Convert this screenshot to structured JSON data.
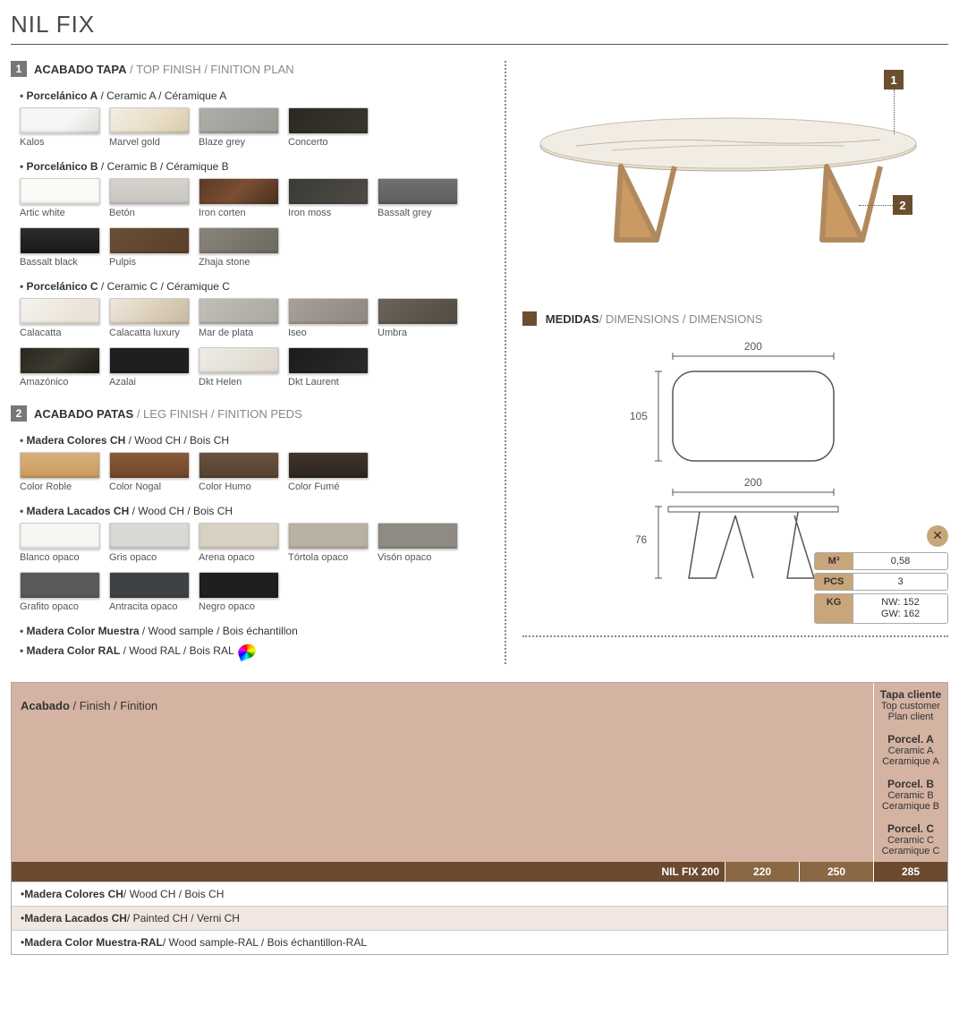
{
  "title": "NIL FIX",
  "section1": {
    "num": "1",
    "title_bold": "ACABADO TAPA",
    "title_rest": " / TOP FINISH / FINITION PLAN",
    "groups": [
      {
        "title_bold": "Porcelánico A",
        "title_rest": " / Ceramic A / Céramique A",
        "swatches": [
          {
            "label": "Kalos",
            "bg": "linear-gradient(135deg,#f5f5f5 60%,#e0dcd8)"
          },
          {
            "label": "Marvel gold",
            "bg": "linear-gradient(135deg,#f3eee6,#e8dcc5 60%,#d8c9a8)"
          },
          {
            "label": "Blaze grey",
            "bg": "linear-gradient(135deg,#b0aea8,#9a9892)"
          },
          {
            "label": "Concerto",
            "bg": "linear-gradient(135deg,#2b2823,#3a362e)"
          }
        ]
      },
      {
        "title_bold": "Porcelánico B",
        "title_rest": " / Ceramic B / Céramique B",
        "swatches": [
          {
            "label": "Artic white",
            "bg": "#fbfaf7"
          },
          {
            "label": "Betón",
            "bg": "linear-gradient(#d6d3cd,#cac7c1)"
          },
          {
            "label": "Iron corten",
            "bg": "linear-gradient(135deg,#5a3b28,#7a4e32 50%,#4a2f20)"
          },
          {
            "label": "Iron moss",
            "bg": "linear-gradient(135deg,#3b3a35,#4e4c44)"
          },
          {
            "label": "Bassalt grey",
            "bg": "linear-gradient(#6f6f6f,#5e5e5e)"
          },
          {
            "label": "Bassalt black",
            "bg": "linear-gradient(#2c2c2c,#1a1a1a)"
          },
          {
            "label": "Pulpis",
            "bg": "linear-gradient(135deg,#6a4e36,#5a4029)"
          },
          {
            "label": "Zhaja stone",
            "bg": "linear-gradient(135deg,#8a857a,#6e695f)"
          }
        ]
      },
      {
        "title_bold": "Porcelánico C",
        "title_rest": " / Ceramic C / Céramique C",
        "swatches": [
          {
            "label": "Calacatta",
            "bg": "linear-gradient(135deg,#f6f4f0,#eae3d7 70%)"
          },
          {
            "label": "Calacatta luxury",
            "bg": "linear-gradient(135deg,#efe8dc,#d9ccb6 60%,#c7b89f)"
          },
          {
            "label": "Mar de plata",
            "bg": "linear-gradient(135deg,#c2bfb8,#aaa7a0)"
          },
          {
            "label": "Iseo",
            "bg": "linear-gradient(135deg,#a9a199,#8f877f)"
          },
          {
            "label": "Umbra",
            "bg": "linear-gradient(135deg,#6b645a,#514b42)"
          },
          {
            "label": "Amazónico",
            "bg": "linear-gradient(135deg,#2a2720,#3e3a30 50%,#1e1b15)"
          },
          {
            "label": "Azalai",
            "bg": "#1f1f1f"
          },
          {
            "label": "Dkt Helen",
            "bg": "linear-gradient(135deg,#efece6,#ddd7cb)"
          },
          {
            "label": "Dkt Laurent",
            "bg": "linear-gradient(135deg,#1c1c1c,#2a2a2a)"
          }
        ]
      }
    ]
  },
  "section2": {
    "num": "2",
    "title_bold": "ACABADO PATAS",
    "title_rest": " / LEG FINISH / FINITION PEDS",
    "groups": [
      {
        "title_bold": "Madera Colores CH",
        "title_rest": " / Wood CH / Bois CH",
        "swatches": [
          {
            "label": "Color Roble",
            "bg": "linear-gradient(#d9b07a,#c99a5e)"
          },
          {
            "label": "Color Nogal",
            "bg": "linear-gradient(#8a5a3a,#6f452b)"
          },
          {
            "label": "Color Humo",
            "bg": "linear-gradient(#6a5340,#54412f)"
          },
          {
            "label": "Color Fumé",
            "bg": "linear-gradient(#3d342c,#2c251f)"
          }
        ]
      },
      {
        "title_bold": "Madera Lacados CH",
        "title_rest": " / Wood CH / Bois CH",
        "swatches": [
          {
            "label": "Blanco opaco",
            "bg": "#f7f6f3"
          },
          {
            "label": "Gris opaco",
            "bg": "#d9d8d5"
          },
          {
            "label": "Arena opaco",
            "bg": "#d7d1c2"
          },
          {
            "label": "Tórtola opaco",
            "bg": "#b8b0a0"
          },
          {
            "label": "Visón opaco",
            "bg": "#8f8a82"
          },
          {
            "label": "Grafito opaco",
            "bg": "#5a5a58"
          },
          {
            "label": "Antracita opaco",
            "bg": "#3e4244"
          },
          {
            "label": "Negro opaco",
            "bg": "#1f1f1f"
          }
        ]
      }
    ],
    "extra1_bold": "Madera Color Muestra",
    "extra1_rest": " / Wood sample / Bois échantillon",
    "extra2_bold": "Madera Color RAL",
    "extra2_rest": " / Wood RAL / Bois RAL"
  },
  "dimensions": {
    "title_bold": "MEDIDAS",
    "title_rest": " / DIMENSIONS / DIMENSIONS",
    "top_w": "200",
    "top_d": "105",
    "side_w": "200",
    "side_h": "76",
    "callout1": "1",
    "callout2": "2",
    "specs": {
      "m3_key": "M³",
      "m3_val": "0,58",
      "pcs_key": "PCS",
      "pcs_val": "3",
      "kg_key": "KG",
      "kg_nw": "NW: 152",
      "kg_gw": "GW: 162"
    }
  },
  "price": {
    "acabado_bold": "Acabado",
    "acabado_rest": " / Finish / Finition",
    "cols": [
      {
        "b": "Tapa cliente",
        "l1": "Top customer",
        "l2": "Plan client"
      },
      {
        "b": "Porcel. A",
        "l1": "Ceramic A",
        "l2": "Ceramique A"
      },
      {
        "b": "Porcel. B",
        "l1": "Ceramic B",
        "l2": "Ceramique B"
      },
      {
        "b": "Porcel. C",
        "l1": "Ceramic C",
        "l2": "Ceramique C"
      }
    ],
    "model": "NIL FIX 200",
    "sizes": [
      "220",
      "250",
      "285"
    ],
    "rows": [
      {
        "bold": "Madera Colores CH",
        "rest": " / Wood CH / Bois CH",
        "alt": false
      },
      {
        "bold": "Madera Lacados CH",
        "rest": " / Painted CH / Verni CH",
        "alt": true
      },
      {
        "bold": "Madera Color Muestra-RAL",
        "rest": " / Wood sample-RAL / Bois échantillon-RAL",
        "alt": false
      }
    ]
  }
}
